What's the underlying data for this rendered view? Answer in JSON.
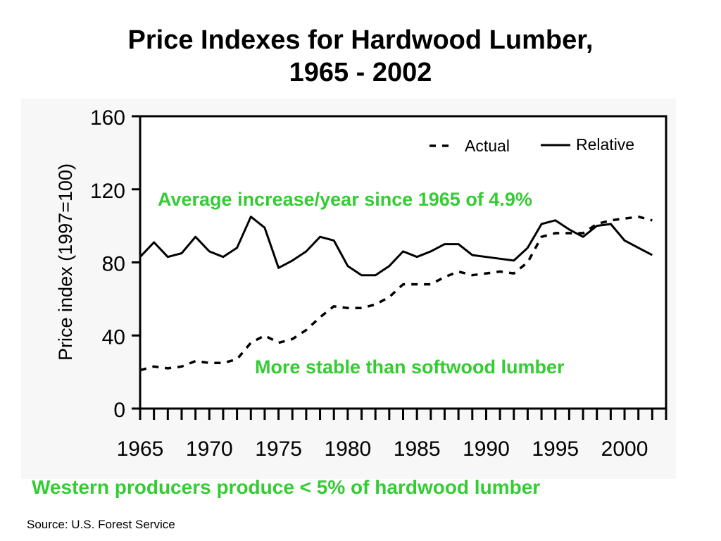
{
  "title_line1": "Price Indexes for Hardwood Lumber,",
  "title_line2": "1965 - 2002",
  "annotations": {
    "average_increase": "Average increase/year since 1965 of 4.9%",
    "stability": "More stable than softwood lumber"
  },
  "footer_note": "Western producers produce < 5% of hardwood lumber",
  "source": "Source: U.S. Forest Service",
  "chart_data": {
    "type": "line",
    "ylabel": "Price index (1997=100)",
    "xlim": [
      1965,
      2003
    ],
    "ylim": [
      0,
      160
    ],
    "yticks": [
      0,
      40,
      80,
      120,
      160
    ],
    "xtick_labels": [
      1965,
      1970,
      1975,
      1980,
      1985,
      1990,
      1995,
      2000
    ],
    "grid": false,
    "legend_position": "top-right",
    "x": [
      1965,
      1966,
      1967,
      1968,
      1969,
      1970,
      1971,
      1972,
      1973,
      1974,
      1975,
      1976,
      1977,
      1978,
      1979,
      1980,
      1981,
      1982,
      1983,
      1984,
      1985,
      1986,
      1987,
      1988,
      1989,
      1990,
      1991,
      1992,
      1993,
      1994,
      1995,
      1996,
      1997,
      1998,
      1999,
      2000,
      2001,
      2002
    ],
    "series": [
      {
        "name": "Actual",
        "style": "dashed",
        "values": [
          21,
          23,
          22,
          23,
          26,
          25,
          25,
          27,
          36,
          40,
          36,
          38,
          43,
          50,
          56,
          55,
          55,
          57,
          61,
          68,
          68,
          68,
          72,
          75,
          73,
          74,
          75,
          74,
          80,
          94,
          96,
          96,
          96,
          101,
          103,
          104,
          105,
          103
        ]
      },
      {
        "name": "Relative",
        "style": "solid",
        "values": [
          83,
          91,
          83,
          85,
          94,
          86,
          83,
          88,
          105,
          99,
          77,
          81,
          86,
          94,
          92,
          78,
          73,
          73,
          78,
          86,
          83,
          86,
          90,
          90,
          84,
          83,
          82,
          81,
          88,
          101,
          103,
          98,
          94,
          100,
          101,
          92,
          88,
          84
        ]
      }
    ]
  }
}
